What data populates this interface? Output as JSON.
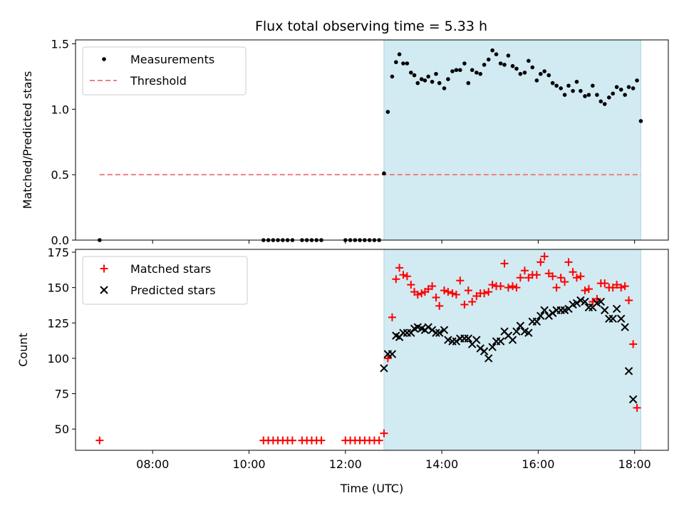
{
  "title": "Flux total observing time = 5.33 h",
  "colors": {
    "shade": "#add8e6",
    "matched": "#ff0000",
    "predicted": "#000000",
    "threshold": "#f08080",
    "measurement": "#000000"
  },
  "chart_data": [
    {
      "type": "scatter",
      "ylabel": "Matched/Predicted stars",
      "xlim": [
        6.4,
        18.7
      ],
      "ylim": [
        0,
        1.53
      ],
      "yticks": [
        0,
        0.5,
        1.0,
        1.5
      ],
      "ytick_labels": [
        "0.0",
        "0.5",
        "1.0",
        "1.5"
      ],
      "xticks": [
        8,
        10,
        12,
        14,
        16,
        18
      ],
      "shaded_span": [
        12.8,
        18.13
      ],
      "legend": {
        "placement": "upper-left",
        "entries": [
          {
            "label": "Measurements",
            "marker": "dot"
          },
          {
            "label": "Threshold",
            "marker": "dashed-line"
          }
        ]
      },
      "threshold": {
        "name": "Threshold",
        "y": 0.5,
        "x": [
          6.9,
          18.13
        ]
      },
      "series": [
        {
          "name": "Measurements",
          "marker": "dot",
          "points": [
            [
              6.9,
              0
            ],
            [
              10.3,
              0
            ],
            [
              10.4,
              0
            ],
            [
              10.5,
              0
            ],
            [
              10.6,
              0
            ],
            [
              10.7,
              0
            ],
            [
              10.8,
              0
            ],
            [
              10.9,
              0
            ],
            [
              11.1,
              0
            ],
            [
              11.2,
              0
            ],
            [
              11.3,
              0
            ],
            [
              11.4,
              0
            ],
            [
              11.5,
              0
            ],
            [
              12.0,
              0
            ],
            [
              12.1,
              0
            ],
            [
              12.2,
              0
            ],
            [
              12.3,
              0
            ],
            [
              12.4,
              0
            ],
            [
              12.5,
              0
            ],
            [
              12.6,
              0
            ],
            [
              12.7,
              0
            ],
            [
              12.8,
              0.51
            ],
            [
              12.88,
              0.98
            ],
            [
              12.97,
              1.25
            ],
            [
              13.05,
              1.36
            ],
            [
              13.12,
              1.42
            ],
            [
              13.2,
              1.35
            ],
            [
              13.28,
              1.35
            ],
            [
              13.36,
              1.28
            ],
            [
              13.43,
              1.26
            ],
            [
              13.5,
              1.2
            ],
            [
              13.58,
              1.23
            ],
            [
              13.65,
              1.22
            ],
            [
              13.72,
              1.25
            ],
            [
              13.8,
              1.21
            ],
            [
              13.88,
              1.27
            ],
            [
              13.95,
              1.2
            ],
            [
              14.05,
              1.16
            ],
            [
              14.13,
              1.23
            ],
            [
              14.22,
              1.29
            ],
            [
              14.3,
              1.3
            ],
            [
              14.38,
              1.3
            ],
            [
              14.47,
              1.35
            ],
            [
              14.55,
              1.2
            ],
            [
              14.63,
              1.3
            ],
            [
              14.72,
              1.28
            ],
            [
              14.8,
              1.27
            ],
            [
              14.88,
              1.34
            ],
            [
              14.97,
              1.38
            ],
            [
              15.05,
              1.45
            ],
            [
              15.13,
              1.42
            ],
            [
              15.22,
              1.35
            ],
            [
              15.3,
              1.34
            ],
            [
              15.38,
              1.41
            ],
            [
              15.47,
              1.33
            ],
            [
              15.55,
              1.31
            ],
            [
              15.63,
              1.27
            ],
            [
              15.72,
              1.28
            ],
            [
              15.8,
              1.37
            ],
            [
              15.88,
              1.32
            ],
            [
              15.97,
              1.22
            ],
            [
              16.05,
              1.27
            ],
            [
              16.13,
              1.29
            ],
            [
              16.22,
              1.26
            ],
            [
              16.3,
              1.2
            ],
            [
              16.38,
              1.18
            ],
            [
              16.47,
              1.16
            ],
            [
              16.55,
              1.11
            ],
            [
              16.63,
              1.18
            ],
            [
              16.72,
              1.14
            ],
            [
              16.8,
              1.21
            ],
            [
              16.88,
              1.14
            ],
            [
              16.97,
              1.1
            ],
            [
              17.05,
              1.11
            ],
            [
              17.13,
              1.18
            ],
            [
              17.22,
              1.11
            ],
            [
              17.3,
              1.06
            ],
            [
              17.38,
              1.04
            ],
            [
              17.47,
              1.09
            ],
            [
              17.55,
              1.12
            ],
            [
              17.63,
              1.17
            ],
            [
              17.72,
              1.15
            ],
            [
              17.8,
              1.11
            ],
            [
              17.88,
              1.17
            ],
            [
              17.97,
              1.16
            ],
            [
              18.05,
              1.22
            ],
            [
              18.13,
              0.91
            ]
          ]
        }
      ]
    },
    {
      "type": "scatter",
      "ylabel": "Count",
      "xlabel": "Time (UTC)",
      "xlim": [
        6.4,
        18.7
      ],
      "ylim": [
        35,
        177
      ],
      "yticks": [
        50,
        75,
        100,
        125,
        150,
        175
      ],
      "xticks": [
        8,
        10,
        12,
        14,
        16,
        18
      ],
      "xtick_labels": [
        "08:00",
        "10:00",
        "12:00",
        "14:00",
        "16:00",
        "18:00"
      ],
      "shaded_span": [
        12.8,
        18.13
      ],
      "legend": {
        "placement": "upper-left",
        "entries": [
          {
            "label": "Matched stars",
            "marker": "plus"
          },
          {
            "label": "Predicted stars",
            "marker": "x"
          }
        ]
      },
      "series": [
        {
          "name": "Matched stars",
          "marker": "plus",
          "points": [
            [
              6.9,
              42
            ],
            [
              10.3,
              42
            ],
            [
              10.4,
              42
            ],
            [
              10.5,
              42
            ],
            [
              10.6,
              42
            ],
            [
              10.7,
              42
            ],
            [
              10.8,
              42
            ],
            [
              10.9,
              42
            ],
            [
              11.1,
              42
            ],
            [
              11.2,
              42
            ],
            [
              11.3,
              42
            ],
            [
              11.4,
              42
            ],
            [
              11.5,
              42
            ],
            [
              12.0,
              42
            ],
            [
              12.1,
              42
            ],
            [
              12.2,
              42
            ],
            [
              12.3,
              42
            ],
            [
              12.4,
              42
            ],
            [
              12.5,
              42
            ],
            [
              12.6,
              42
            ],
            [
              12.7,
              42
            ],
            [
              12.8,
              47
            ],
            [
              12.88,
              100
            ],
            [
              12.97,
              129
            ],
            [
              13.05,
              156
            ],
            [
              13.12,
              164
            ],
            [
              13.2,
              159
            ],
            [
              13.28,
              158
            ],
            [
              13.36,
              152
            ],
            [
              13.43,
              147
            ],
            [
              13.5,
              145
            ],
            [
              13.58,
              146
            ],
            [
              13.65,
              147
            ],
            [
              13.72,
              149
            ],
            [
              13.8,
              151
            ],
            [
              13.88,
              143
            ],
            [
              13.95,
              137
            ],
            [
              14.05,
              148
            ],
            [
              14.13,
              147
            ],
            [
              14.22,
              146
            ],
            [
              14.3,
              145
            ],
            [
              14.38,
              155
            ],
            [
              14.47,
              138
            ],
            [
              14.55,
              148
            ],
            [
              14.63,
              140
            ],
            [
              14.72,
              144
            ],
            [
              14.8,
              146
            ],
            [
              14.88,
              146
            ],
            [
              14.97,
              147
            ],
            [
              15.05,
              152
            ],
            [
              15.13,
              151
            ],
            [
              15.22,
              151
            ],
            [
              15.3,
              167
            ],
            [
              15.38,
              150
            ],
            [
              15.47,
              151
            ],
            [
              15.55,
              150
            ],
            [
              15.63,
              157
            ],
            [
              15.72,
              162
            ],
            [
              15.8,
              157
            ],
            [
              15.88,
              159
            ],
            [
              15.97,
              159
            ],
            [
              16.05,
              168
            ],
            [
              16.13,
              172
            ],
            [
              16.22,
              160
            ],
            [
              16.3,
              158
            ],
            [
              16.38,
              150
            ],
            [
              16.47,
              157
            ],
            [
              16.55,
              154
            ],
            [
              16.63,
              168
            ],
            [
              16.72,
              161
            ],
            [
              16.8,
              157
            ],
            [
              16.88,
              158
            ],
            [
              16.97,
              148
            ],
            [
              17.05,
              149
            ],
            [
              17.13,
              140
            ],
            [
              17.22,
              142
            ],
            [
              17.3,
              153
            ],
            [
              17.38,
              153
            ],
            [
              17.47,
              150
            ],
            [
              17.55,
              150
            ],
            [
              17.63,
              152
            ],
            [
              17.72,
              150
            ],
            [
              17.8,
              151
            ],
            [
              17.88,
              141
            ],
            [
              17.97,
              110
            ],
            [
              18.05,
              65
            ]
          ]
        },
        {
          "name": "Predicted stars",
          "marker": "x",
          "points": [
            [
              12.8,
              93
            ],
            [
              12.88,
              103
            ],
            [
              12.97,
              103
            ],
            [
              13.05,
              116
            ],
            [
              13.12,
              115
            ],
            [
              13.2,
              118
            ],
            [
              13.28,
              118
            ],
            [
              13.36,
              118
            ],
            [
              13.43,
              121
            ],
            [
              13.5,
              122
            ],
            [
              13.58,
              121
            ],
            [
              13.65,
              120
            ],
            [
              13.72,
              122
            ],
            [
              13.8,
              120
            ],
            [
              13.88,
              118
            ],
            [
              13.95,
              118
            ],
            [
              14.05,
              120
            ],
            [
              14.13,
              113
            ],
            [
              14.22,
              112
            ],
            [
              14.3,
              112
            ],
            [
              14.38,
              114
            ],
            [
              14.47,
              114
            ],
            [
              14.55,
              114
            ],
            [
              14.63,
              110
            ],
            [
              14.72,
              113
            ],
            [
              14.8,
              107
            ],
            [
              14.88,
              105
            ],
            [
              14.97,
              100
            ],
            [
              15.05,
              108
            ],
            [
              15.13,
              112
            ],
            [
              15.22,
              112
            ],
            [
              15.3,
              119
            ],
            [
              15.38,
              116
            ],
            [
              15.47,
              113
            ],
            [
              15.55,
              119
            ],
            [
              15.63,
              123
            ],
            [
              15.72,
              119
            ],
            [
              15.8,
              118
            ],
            [
              15.88,
              126
            ],
            [
              15.97,
              126
            ],
            [
              16.05,
              130
            ],
            [
              16.13,
              134
            ],
            [
              16.22,
              130
            ],
            [
              16.3,
              132
            ],
            [
              16.38,
              134
            ],
            [
              16.47,
              134
            ],
            [
              16.55,
              134
            ],
            [
              16.63,
              135
            ],
            [
              16.72,
              138
            ],
            [
              16.8,
              139
            ],
            [
              16.88,
              141
            ],
            [
              16.97,
              140
            ],
            [
              17.05,
              136
            ],
            [
              17.13,
              136
            ],
            [
              17.22,
              139
            ],
            [
              17.3,
              140
            ],
            [
              17.38,
              134
            ],
            [
              17.47,
              128
            ],
            [
              17.55,
              128
            ],
            [
              17.63,
              135
            ],
            [
              17.72,
              128
            ],
            [
              17.8,
              122
            ],
            [
              17.88,
              91
            ],
            [
              17.97,
              71
            ]
          ]
        }
      ]
    }
  ]
}
